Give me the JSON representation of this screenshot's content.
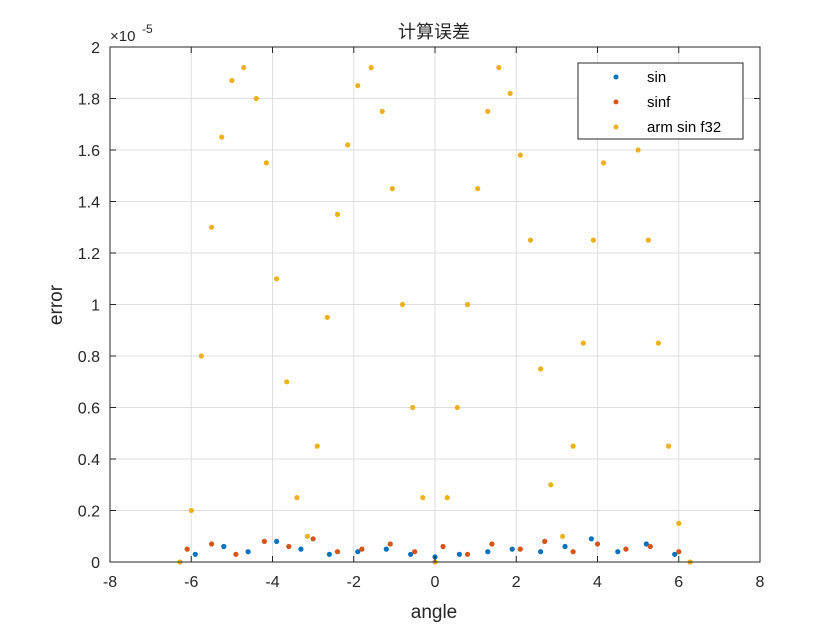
{
  "chart_data": {
    "type": "scatter",
    "title": "计算误差",
    "xlabel": "angle",
    "ylabel": "error",
    "xlim": [
      -8,
      8
    ],
    "ylim": [
      0,
      2e-05
    ],
    "x_ticks": [
      -8,
      -6,
      -4,
      -2,
      0,
      2,
      4,
      6,
      8
    ],
    "x_tick_labels": [
      "-8",
      "-6",
      "-4",
      "-2",
      "0",
      "2",
      "4",
      "6",
      "8"
    ],
    "y_ticks": [
      0,
      0.2,
      0.4,
      0.6,
      0.8,
      1,
      1.2,
      1.4,
      1.6,
      1.8,
      2
    ],
    "y_tick_labels": [
      "0",
      "0.2",
      "0.4",
      "0.6",
      "0.8",
      "1",
      "1.2",
      "1.4",
      "1.6",
      "1.8",
      "2"
    ],
    "y_exponent_label": "×10",
    "y_exponent_power": "-5",
    "grid": true,
    "legend_position": "top-right",
    "series": [
      {
        "name": "sin",
        "color": "#0072BD",
        "x": [
          -5.9,
          -5.2,
          -4.6,
          -3.9,
          -3.3,
          -2.6,
          -1.9,
          -1.2,
          -0.6,
          0.0,
          0.6,
          1.3,
          1.9,
          2.6,
          3.2,
          3.85,
          4.5,
          5.2,
          5.9
        ],
        "y": [
          3e-07,
          6e-07,
          4e-07,
          8e-07,
          5e-07,
          3e-07,
          4e-07,
          5e-07,
          3e-07,
          2e-07,
          3e-07,
          4e-07,
          5e-07,
          4e-07,
          6e-07,
          9e-07,
          4e-07,
          7e-07,
          3e-07
        ]
      },
      {
        "name": "sinf",
        "color": "#D95319",
        "x": [
          -6.1,
          -5.5,
          -4.9,
          -4.2,
          -3.6,
          -3.0,
          -2.4,
          -1.8,
          -1.1,
          -0.5,
          0.2,
          0.8,
          1.4,
          2.1,
          2.7,
          3.4,
          4.0,
          4.7,
          5.3,
          6.0
        ],
        "y": [
          5e-07,
          7e-07,
          3e-07,
          8e-07,
          6e-07,
          9e-07,
          4e-07,
          5e-07,
          7e-07,
          4e-07,
          6e-07,
          3e-07,
          7e-07,
          5e-07,
          8e-07,
          4e-07,
          7e-07,
          5e-07,
          6e-07,
          4e-07
        ]
      },
      {
        "name": "arm sin f32",
        "color": "#EDB120",
        "x": [
          -6.28,
          -6.0,
          -5.75,
          -5.5,
          -5.25,
          -5.0,
          -4.71,
          -4.4,
          -4.15,
          -3.9,
          -3.65,
          -3.4,
          -3.14,
          -2.9,
          -2.65,
          -2.4,
          -2.15,
          -1.9,
          -1.57,
          -1.3,
          -1.05,
          -0.8,
          -0.55,
          -0.3,
          0.0,
          0.3,
          0.55,
          0.8,
          1.05,
          1.3,
          1.57,
          1.85,
          2.1,
          2.35,
          2.6,
          2.85,
          3.14,
          3.4,
          3.65,
          3.9,
          4.15,
          4.4,
          4.71,
          5.0,
          5.25,
          5.5,
          5.75,
          6.0,
          6.28
        ],
        "y": [
          0.0,
          2e-06,
          8e-06,
          1.3e-05,
          1.65e-05,
          1.87e-05,
          1.92e-05,
          1.8e-05,
          1.55e-05,
          1.1e-05,
          7e-06,
          2.5e-06,
          1e-06,
          4.5e-06,
          9.5e-06,
          1.35e-05,
          1.62e-05,
          1.85e-05,
          1.92e-05,
          1.75e-05,
          1.45e-05,
          1e-05,
          6e-06,
          2.5e-06,
          0.0,
          2.5e-06,
          6e-06,
          1e-05,
          1.45e-05,
          1.75e-05,
          1.92e-05,
          1.82e-05,
          1.58e-05,
          1.25e-05,
          7.5e-06,
          3e-06,
          1e-06,
          4.5e-06,
          8.5e-06,
          1.25e-05,
          1.55e-05,
          1.75e-05,
          1.8e-05,
          1.6e-05,
          1.25e-05,
          8.5e-06,
          4.5e-06,
          1.5e-06,
          0.0
        ]
      }
    ]
  }
}
